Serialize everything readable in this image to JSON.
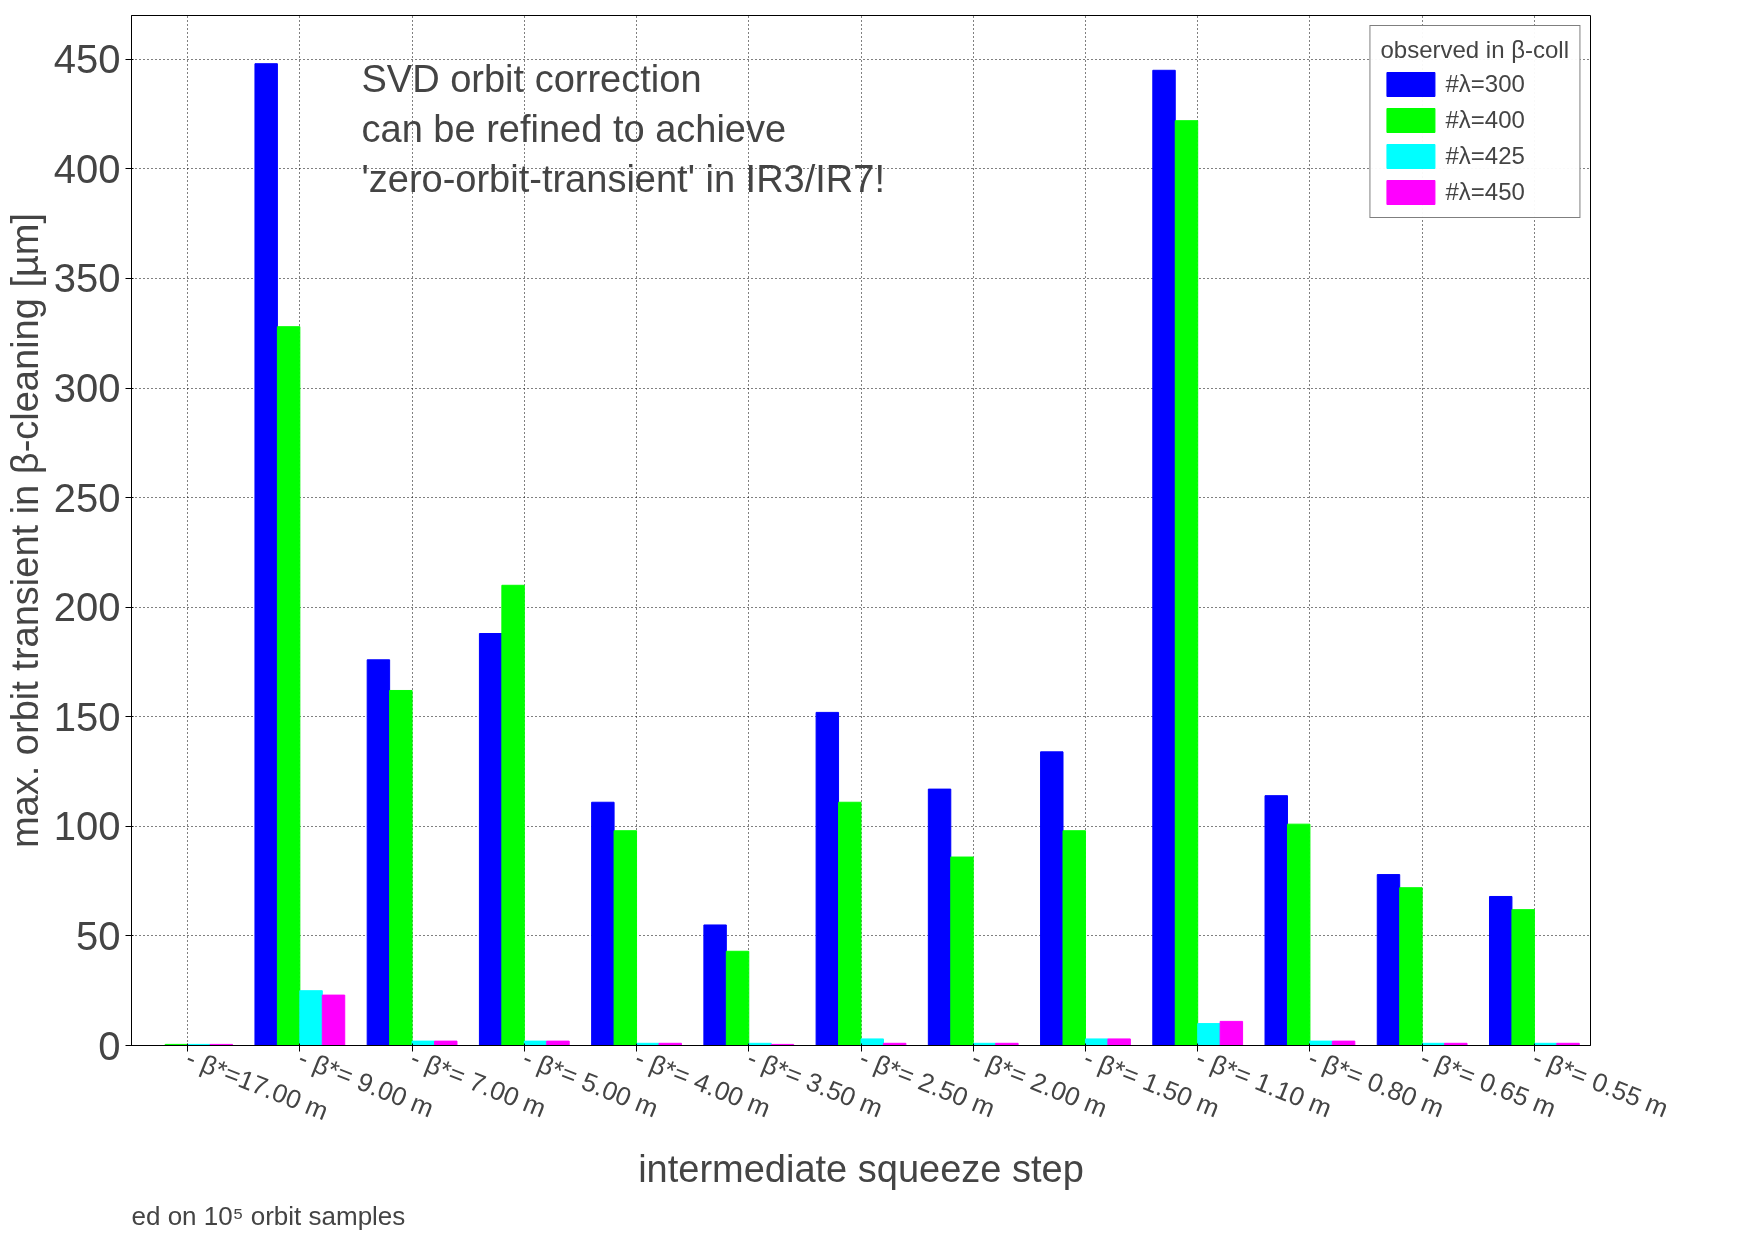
{
  "chart_data": {
    "type": "bar",
    "xlabel": "intermediate squeeze step",
    "ylabel": "max. orbit transient in β-cleaning [µm]",
    "legend_title": "observed in β-coll",
    "annotations": [
      "SVD orbit correction\ncan be refined to achieve\n'zero-orbit-transient' in IR3/IR7!",
      "ed on 10⁵ orbit samples"
    ],
    "categories": [
      "- β*=17.00 m",
      "- β*= 9.00 m",
      "- β*= 7.00 m",
      "- β*= 5.00 m",
      "- β*= 4.00 m",
      "- β*= 3.50 m",
      "- β*= 2.50 m",
      "- β*= 2.00 m",
      "- β*= 1.50 m",
      "- β*= 1.10 m",
      "- β*= 0.80 m",
      "- β*= 0.65 m",
      "- β*= 0.55 m"
    ],
    "series": [
      {
        "name": "#λ=300",
        "color": "#0000ff",
        "values": [
          null,
          448,
          176,
          188,
          111,
          55,
          152,
          117,
          134,
          445,
          114,
          78,
          68
        ]
      },
      {
        "name": "#λ=400",
        "color": "#00ff00",
        "values": [
          0.5,
          328,
          162,
          210,
          98,
          43,
          111,
          86,
          98,
          422,
          101,
          72,
          62
        ]
      },
      {
        "name": "#λ=425",
        "color": "#00ffff",
        "values": [
          0.5,
          25,
          2,
          2,
          1,
          1,
          3,
          1,
          3,
          10,
          2,
          1,
          1
        ]
      },
      {
        "name": "#λ=450",
        "color": "#ff00ff",
        "values": [
          0.5,
          23,
          2,
          2,
          1,
          0.5,
          1,
          1,
          3,
          11,
          2,
          1,
          1
        ]
      }
    ],
    "ylim": [
      0,
      470
    ],
    "yticks": [
      0,
      50,
      100,
      150,
      200,
      250,
      300,
      350,
      400,
      450
    ],
    "grid": true,
    "legend": "top right"
  }
}
